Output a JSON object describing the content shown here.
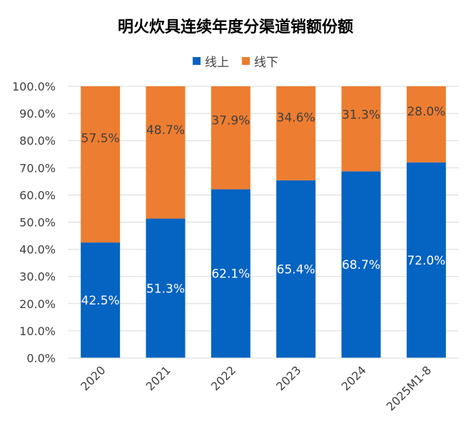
{
  "chart_data": {
    "type": "bar",
    "stacked": true,
    "title": "明火炊具连续年度分渠道销额份额",
    "categories": [
      "2020",
      "2021",
      "2022",
      "2023",
      "2024",
      "2025M1-8"
    ],
    "series": [
      {
        "name": "线上",
        "color": "#0563C1",
        "values": [
          42.5,
          51.3,
          62.1,
          65.4,
          68.7,
          72.0
        ],
        "labels": [
          "42.5%",
          "51.3%",
          "62.1%",
          "65.4%",
          "68.7%",
          "72.0%"
        ]
      },
      {
        "name": "线下",
        "color": "#ED7D31",
        "values": [
          57.5,
          48.7,
          37.9,
          34.6,
          31.3,
          28.0
        ],
        "labels": [
          "57.5%",
          "48.7%",
          "37.9%",
          "34.6%",
          "31.3%",
          "28.0%"
        ]
      }
    ],
    "ylim": [
      0,
      100
    ],
    "yticks": [
      "0.0%",
      "10.0%",
      "20.0%",
      "30.0%",
      "40.0%",
      "50.0%",
      "60.0%",
      "70.0%",
      "80.0%",
      "90.0%",
      "100.0%"
    ],
    "grid": true,
    "legend_position": "top"
  }
}
